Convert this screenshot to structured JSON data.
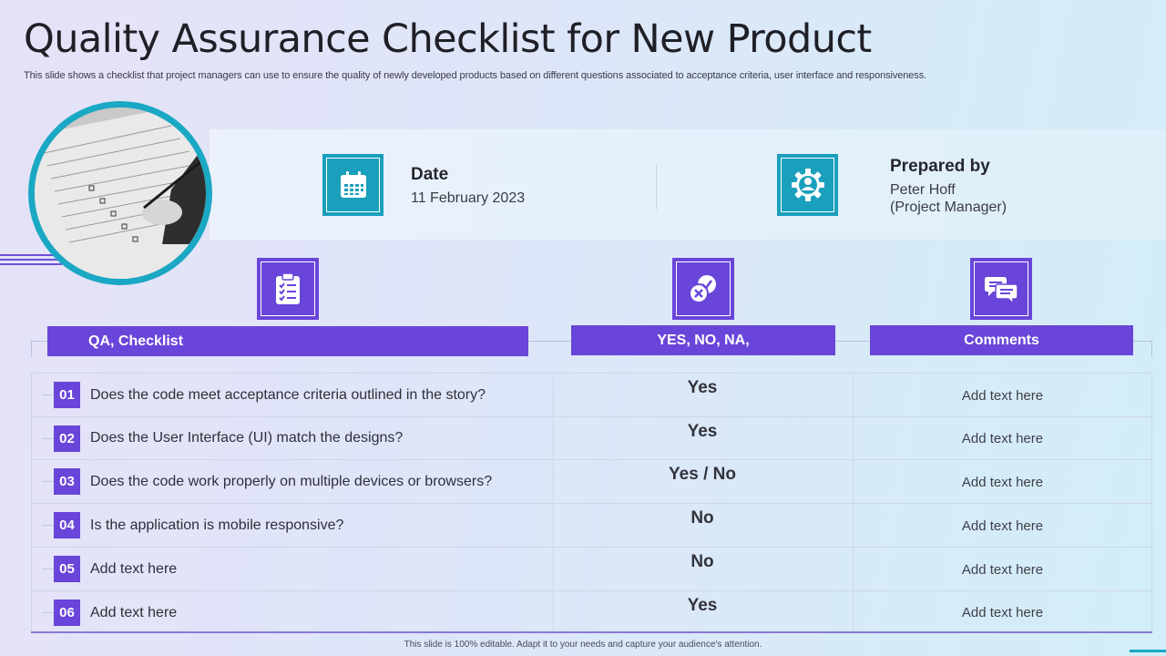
{
  "slide": {
    "title": "Quality Assurance Checklist for New Product",
    "subtitle": "This slide shows a checklist that project managers can use to ensure the quality of newly developed products based on different questions associated to acceptance criteria, user interface and responsiveness.",
    "footer": "This slide is 100% editable. Adapt it to your needs and capture your audience's attention."
  },
  "info": {
    "date_label": "Date",
    "date_value": "11 February 2023",
    "prepared_label": "Prepared by",
    "prepared_name": "Peter Hoff",
    "prepared_role": "(Project Manager)"
  },
  "table": {
    "headers": [
      "QA, Checklist",
      "YES, NO, NA,",
      "Comments"
    ],
    "rows": [
      {
        "num": "01",
        "question": "Does the code meet acceptance criteria outlined in the story?",
        "answer": "Yes",
        "comment": "Add text here"
      },
      {
        "num": "02",
        "question": "Does the User Interface  (UI) match the designs?",
        "answer": "Yes",
        "comment": "Add text here"
      },
      {
        "num": "03",
        "question": "Does the code work properly on multiple devices or browsers?",
        "answer": "Yes / No",
        "comment": "Add text here"
      },
      {
        "num": "04",
        "question": "Is the application is mobile responsive?",
        "answer": "No",
        "comment": "Add text here"
      },
      {
        "num": "05",
        "question": "Add text here",
        "answer": "No",
        "comment": "Add text here"
      },
      {
        "num": "06",
        "question": "Add text here",
        "answer": "Yes",
        "comment": "Add text here"
      }
    ]
  },
  "icons": {
    "photo": "checklist-photo",
    "date": "calendar-icon",
    "prepared": "user-gear-icon",
    "checklist": "clipboard-checklist-icon",
    "yesno": "check-cross-icon",
    "comments": "chat-bubbles-icon"
  },
  "colors": {
    "purple": "#6a45d9",
    "teal": "#1aa0bc"
  }
}
